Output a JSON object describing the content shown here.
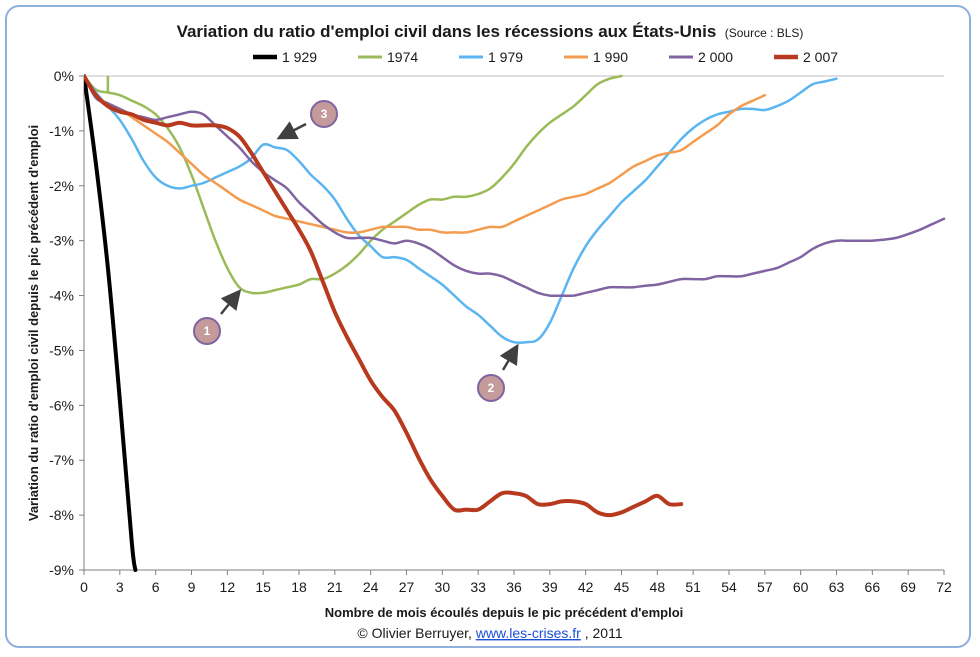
{
  "chart_data": {
    "type": "line",
    "title": "Variation du ratio d'emploi civil dans les récessions aux États-Unis",
    "source_note": "(Source : BLS)",
    "xlabel": "Nombre de mois écoulés depuis le pic précédent d'emploi",
    "ylabel": "Variation du ratio d'emploi civil depuis le pic précédent d'emploi",
    "xlim": [
      0,
      72
    ],
    "ylim": [
      -9,
      0
    ],
    "x_ticks": [
      "0",
      "3",
      "6",
      "9",
      "12",
      "15",
      "18",
      "21",
      "24",
      "27",
      "30",
      "33",
      "36",
      "39",
      "42",
      "45",
      "48",
      "51",
      "54",
      "57",
      "60",
      "63",
      "66",
      "69",
      "72"
    ],
    "y_ticks": [
      "0%",
      "-1%",
      "-2%",
      "-3%",
      "-4%",
      "-5%",
      "-6%",
      "-7%",
      "-8%",
      "-9%"
    ],
    "grid": "horizontal-top-only",
    "legend": "top",
    "series": [
      {
        "name": "1 929",
        "color": "#000000",
        "width": 4,
        "x": [
          0,
          1,
          2,
          3,
          4,
          4.3
        ],
        "y": [
          0,
          -1.6,
          -3.5,
          -5.9,
          -8.5,
          -9.0
        ]
      },
      {
        "name": "1974",
        "color": "#9bbb59",
        "width": 2.5,
        "x": [
          0,
          1,
          2,
          3,
          4,
          5,
          6,
          7,
          8,
          9,
          10,
          11,
          12,
          13,
          14,
          15,
          16,
          17,
          18,
          19,
          20,
          21,
          22,
          23,
          24,
          25,
          26,
          27,
          28,
          29,
          30,
          31,
          32,
          33,
          34,
          35,
          36,
          37,
          38,
          39,
          40,
          41,
          42,
          43,
          44,
          45
        ],
        "y": [
          0,
          -0.25,
          -0.3,
          -0.35,
          -0.45,
          -0.55,
          -0.7,
          -0.95,
          -1.3,
          -1.8,
          -2.4,
          -3.0,
          -3.5,
          -3.85,
          -3.95,
          -3.95,
          -3.9,
          -3.85,
          -3.8,
          -3.7,
          -3.7,
          -3.6,
          -3.45,
          -3.25,
          -3.0,
          -2.8,
          -2.65,
          -2.5,
          -2.35,
          -2.25,
          -2.25,
          -2.2,
          -2.2,
          -2.15,
          -2.05,
          -1.85,
          -1.6,
          -1.3,
          -1.05,
          -0.85,
          -0.7,
          -0.55,
          -0.35,
          -0.15,
          -0.05,
          0.0
        ]
      },
      {
        "name": "1 979",
        "color": "#5bb5f0",
        "width": 2.5,
        "x": [
          0,
          1,
          2,
          3,
          4,
          5,
          6,
          7,
          8,
          9,
          10,
          11,
          12,
          13,
          14,
          15,
          16,
          17,
          18,
          19,
          20,
          21,
          22,
          23,
          24,
          25,
          26,
          27,
          28,
          29,
          30,
          31,
          32,
          33,
          34,
          35,
          36,
          37,
          38,
          39,
          40,
          41,
          42,
          43,
          44,
          45,
          46,
          47,
          48,
          49,
          50,
          51,
          52,
          53,
          54,
          55,
          56,
          57,
          58,
          59,
          60,
          61,
          62,
          63
        ],
        "y": [
          0,
          -0.3,
          -0.55,
          -0.8,
          -1.15,
          -1.55,
          -1.85,
          -2.0,
          -2.05,
          -2.0,
          -1.95,
          -1.85,
          -1.75,
          -1.65,
          -1.5,
          -1.25,
          -1.3,
          -1.35,
          -1.55,
          -1.8,
          -2.0,
          -2.25,
          -2.6,
          -2.9,
          -3.1,
          -3.3,
          -3.3,
          -3.35,
          -3.5,
          -3.65,
          -3.8,
          -4.0,
          -4.2,
          -4.35,
          -4.55,
          -4.75,
          -4.85,
          -4.85,
          -4.8,
          -4.5,
          -4.0,
          -3.5,
          -3.1,
          -2.8,
          -2.55,
          -2.3,
          -2.1,
          -1.9,
          -1.65,
          -1.4,
          -1.15,
          -0.95,
          -0.8,
          -0.7,
          -0.65,
          -0.6,
          -0.6,
          -0.62,
          -0.55,
          -0.45,
          -0.3,
          -0.15,
          -0.1,
          -0.05
        ]
      },
      {
        "name": "1 990",
        "color": "#f39c4f",
        "width": 2.5,
        "x": [
          0,
          1,
          2,
          3,
          4,
          5,
          6,
          7,
          8,
          9,
          10,
          11,
          12,
          13,
          14,
          15,
          16,
          17,
          18,
          19,
          20,
          21,
          22,
          23,
          24,
          25,
          26,
          27,
          28,
          29,
          30,
          31,
          32,
          33,
          34,
          35,
          36,
          37,
          38,
          39,
          40,
          41,
          42,
          43,
          44,
          45,
          46,
          47,
          48,
          49,
          50,
          51,
          52,
          53,
          54,
          55,
          56,
          57
        ],
        "y": [
          0,
          -0.35,
          -0.5,
          -0.6,
          -0.75,
          -0.9,
          -1.05,
          -1.2,
          -1.4,
          -1.6,
          -1.8,
          -1.95,
          -2.1,
          -2.25,
          -2.35,
          -2.45,
          -2.55,
          -2.6,
          -2.65,
          -2.7,
          -2.75,
          -2.8,
          -2.85,
          -2.85,
          -2.8,
          -2.75,
          -2.75,
          -2.75,
          -2.8,
          -2.8,
          -2.85,
          -2.85,
          -2.85,
          -2.8,
          -2.75,
          -2.75,
          -2.65,
          -2.55,
          -2.45,
          -2.35,
          -2.25,
          -2.2,
          -2.15,
          -2.05,
          -1.95,
          -1.8,
          -1.65,
          -1.55,
          -1.45,
          -1.4,
          -1.35,
          -1.2,
          -1.05,
          -0.9,
          -0.7,
          -0.55,
          -0.45,
          -0.35
        ]
      },
      {
        "name": "2 000",
        "color": "#8064a2",
        "width": 2.5,
        "x": [
          0,
          1,
          2,
          3,
          4,
          5,
          6,
          7,
          8,
          9,
          10,
          11,
          12,
          13,
          14,
          15,
          16,
          17,
          18,
          19,
          20,
          21,
          22,
          23,
          24,
          25,
          26,
          27,
          28,
          29,
          30,
          31,
          32,
          33,
          34,
          35,
          36,
          37,
          38,
          39,
          40,
          41,
          42,
          43,
          44,
          45,
          46,
          47,
          48,
          49,
          50,
          51,
          52,
          53,
          54,
          55,
          56,
          57,
          58,
          59,
          60,
          61,
          62,
          63,
          64,
          65,
          66,
          67,
          68,
          69,
          70,
          71,
          72
        ],
        "y": [
          0,
          -0.4,
          -0.5,
          -0.6,
          -0.7,
          -0.75,
          -0.8,
          -0.75,
          -0.7,
          -0.65,
          -0.7,
          -0.9,
          -1.1,
          -1.3,
          -1.55,
          -1.75,
          -1.9,
          -2.05,
          -2.3,
          -2.5,
          -2.7,
          -2.85,
          -2.95,
          -2.95,
          -2.95,
          -3.0,
          -3.05,
          -3.0,
          -3.05,
          -3.15,
          -3.3,
          -3.45,
          -3.55,
          -3.6,
          -3.6,
          -3.65,
          -3.75,
          -3.85,
          -3.95,
          -4.0,
          -4.0,
          -4.0,
          -3.95,
          -3.9,
          -3.85,
          -3.85,
          -3.85,
          -3.82,
          -3.8,
          -3.75,
          -3.7,
          -3.7,
          -3.7,
          -3.65,
          -3.65,
          -3.65,
          -3.6,
          -3.55,
          -3.5,
          -3.4,
          -3.3,
          -3.15,
          -3.05,
          -3.0,
          -3.0,
          -3.0,
          -3.0,
          -2.98,
          -2.95,
          -2.88,
          -2.8,
          -2.7,
          -2.6
        ]
      },
      {
        "name": "2 007",
        "color": "#b83a1e",
        "width": 4,
        "x": [
          0,
          1,
          2,
          3,
          4,
          5,
          6,
          7,
          8,
          9,
          10,
          11,
          12,
          13,
          14,
          15,
          16,
          17,
          18,
          19,
          20,
          21,
          22,
          23,
          24,
          25,
          26,
          27,
          28,
          29,
          30,
          31,
          32,
          33,
          34,
          35,
          36,
          37,
          38,
          39,
          40,
          41,
          42,
          43,
          44,
          45,
          46,
          47,
          48,
          49,
          50
        ],
        "y": [
          0,
          -0.35,
          -0.55,
          -0.65,
          -0.7,
          -0.8,
          -0.85,
          -0.9,
          -0.85,
          -0.9,
          -0.9,
          -0.9,
          -0.95,
          -1.1,
          -1.4,
          -1.75,
          -2.1,
          -2.45,
          -2.8,
          -3.2,
          -3.75,
          -4.3,
          -4.75,
          -5.15,
          -5.55,
          -5.85,
          -6.1,
          -6.5,
          -6.95,
          -7.35,
          -7.65,
          -7.9,
          -7.9,
          -7.9,
          -7.75,
          -7.6,
          -7.6,
          -7.65,
          -7.8,
          -7.8,
          -7.75,
          -7.75,
          -7.8,
          -7.95,
          -8.0,
          -7.95,
          -7.85,
          -7.75,
          -7.65,
          -7.8,
          -7.8
        ]
      }
    ],
    "annotations": [
      {
        "label": "1"
      },
      {
        "label": "2"
      },
      {
        "label": "3"
      }
    ]
  },
  "credit": {
    "prefix": "© Olivier Berruyer, ",
    "link": "www.les-crises.fr",
    "suffix": ",  2011"
  }
}
